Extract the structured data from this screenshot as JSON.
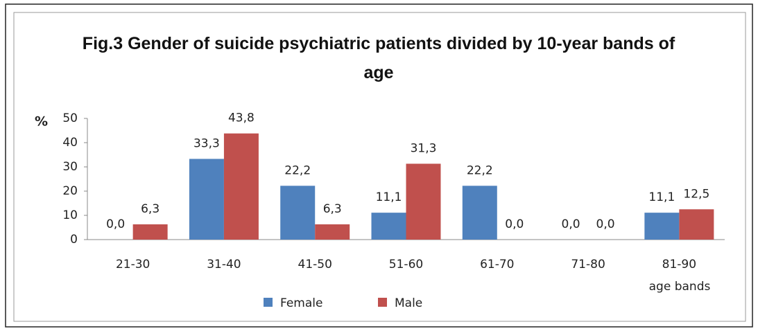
{
  "chart_data": {
    "type": "bar",
    "title": "Fig.3 Gender of suicide psychiatric patients divided by 10-year bands of age",
    "y_label": "%",
    "x_label": "age bands",
    "categories": [
      "21-30",
      "31-40",
      "41-50",
      "51-60",
      "61-70",
      "71-80",
      "81-90"
    ],
    "series": [
      {
        "name": "Female",
        "color": "#4f81bd",
        "values": [
          0,
          33.3,
          22.2,
          11.1,
          22.2,
          0,
          11.1
        ],
        "value_labels": [
          "0,0",
          "33,3",
          "22,2",
          "11,1",
          "22,2",
          "0,0",
          "11,1"
        ]
      },
      {
        "name": "Male",
        "color": "#c0504d",
        "values": [
          6.3,
          43.8,
          6.3,
          31.3,
          0,
          0,
          12.5
        ],
        "value_labels": [
          "6,3",
          "43,8",
          "6,3",
          "31,3",
          "0,0",
          "0,0",
          "12,5"
        ]
      }
    ],
    "ylim": [
      0,
      50
    ],
    "yticks": [
      0,
      10,
      20,
      30,
      40,
      50
    ],
    "grid": false,
    "legend": "bottom"
  }
}
